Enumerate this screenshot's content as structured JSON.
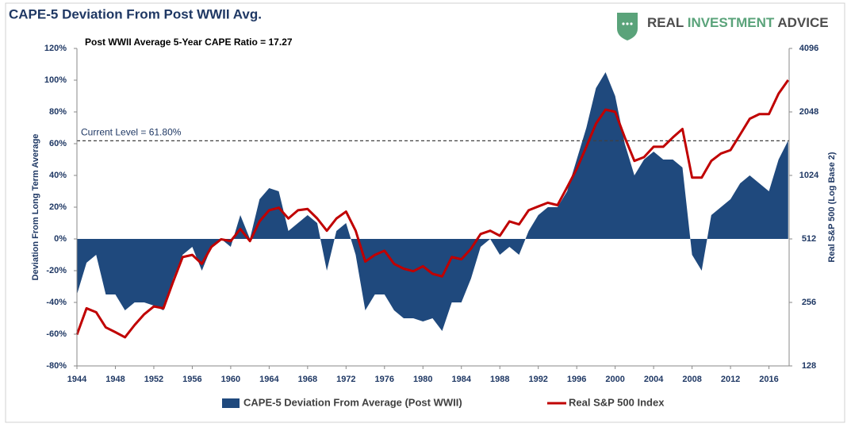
{
  "chart_data": {
    "type": "area_line",
    "title": "CAPE-5 Deviation From Post WWII Avg.",
    "subtitle": "Post WWII Average 5-Year CAPE Ratio = 17.27",
    "brand": [
      "REAL",
      "INVESTMENT",
      "ADVICE"
    ],
    "ylabel": "Deviation From Long Term Average",
    "y2label": "Real S&P 500 (Log Base 2)",
    "reference_line": {
      "value": 61.8,
      "label": "Current Level = 61.80%"
    },
    "xlim": [
      1944,
      2018.1
    ],
    "xticks": [
      1944,
      1948,
      1952,
      1956,
      1960,
      1964,
      1968,
      1972,
      1976,
      1980,
      1984,
      1988,
      1992,
      1996,
      2000,
      2004,
      2008,
      2012,
      2016
    ],
    "ylim": [
      -80,
      120
    ],
    "yticks": [
      {
        "value": -80,
        "label": "-80%"
      },
      {
        "value": -60,
        "label": "-60%"
      },
      {
        "value": -40,
        "label": "-40%"
      },
      {
        "value": -20,
        "label": "-20%"
      },
      {
        "value": 0,
        "label": "0%"
      },
      {
        "value": 20,
        "label": "20%"
      },
      {
        "value": 40,
        "label": "40%"
      },
      {
        "value": 60,
        "label": "60%"
      },
      {
        "value": 80,
        "label": "80%"
      },
      {
        "value": 100,
        "label": "100%"
      },
      {
        "value": 120,
        "label": "120%"
      }
    ],
    "y2lim": [
      128,
      4096
    ],
    "y2ticks": [
      128,
      256,
      512,
      1024,
      2048,
      4096
    ],
    "y2log_base": 2,
    "x": [
      1944,
      1945,
      1946,
      1947,
      1948,
      1949,
      1950,
      1951,
      1952,
      1953,
      1954,
      1955,
      1956,
      1957,
      1958,
      1959,
      1960,
      1961,
      1962,
      1963,
      1964,
      1965,
      1966,
      1967,
      1968,
      1969,
      1970,
      1971,
      1972,
      1973,
      1974,
      1975,
      1976,
      1977,
      1978,
      1979,
      1980,
      1981,
      1982,
      1983,
      1984,
      1985,
      1986,
      1987,
      1988,
      1989,
      1990,
      1991,
      1992,
      1993,
      1994,
      1995,
      1996,
      1997,
      1998,
      1999,
      2000,
      2001,
      2002,
      2003,
      2004,
      2005,
      2006,
      2007,
      2008,
      2009,
      2010,
      2011,
      2012,
      2013,
      2014,
      2015,
      2016,
      2017,
      2018
    ],
    "series": [
      {
        "name": "CAPE-5 Deviation From Average (Post WWII)",
        "kind": "area",
        "color": "#1f497d",
        "values": [
          -35,
          -15,
          -10,
          -35,
          -35,
          -45,
          -40,
          -40,
          -42,
          -45,
          -25,
          -10,
          -5,
          -20,
          -5,
          0,
          -5,
          15,
          0,
          25,
          32,
          30,
          5,
          10,
          15,
          10,
          -20,
          5,
          10,
          -10,
          -45,
          -35,
          -35,
          -45,
          -50,
          -50,
          -52,
          -50,
          -58,
          -40,
          -40,
          -25,
          -5,
          0,
          -10,
          -5,
          -10,
          5,
          15,
          20,
          20,
          30,
          50,
          70,
          95,
          105,
          90,
          60,
          40,
          50,
          55,
          50,
          50,
          45,
          -10,
          -20,
          15,
          20,
          25,
          35,
          40,
          35,
          30,
          50,
          62
        ]
      },
      {
        "name": "Real S&P 500 Index",
        "kind": "line",
        "axis": "y2",
        "color": "#c00000",
        "values": [
          180,
          240,
          230,
          195,
          185,
          175,
          200,
          225,
          245,
          240,
          320,
          420,
          430,
          390,
          470,
          510,
          500,
          570,
          500,
          620,
          700,
          720,
          640,
          700,
          710,
          640,
          560,
          640,
          690,
          560,
          400,
          430,
          450,
          390,
          370,
          360,
          380,
          350,
          340,
          420,
          410,
          460,
          540,
          560,
          530,
          620,
          600,
          700,
          730,
          760,
          740,
          900,
          1100,
          1400,
          1800,
          2100,
          2050,
          1550,
          1200,
          1250,
          1400,
          1400,
          1550,
          1700,
          1000,
          1000,
          1200,
          1300,
          1350,
          1600,
          1900,
          2000,
          2000,
          2500,
          2900
        ]
      }
    ]
  }
}
